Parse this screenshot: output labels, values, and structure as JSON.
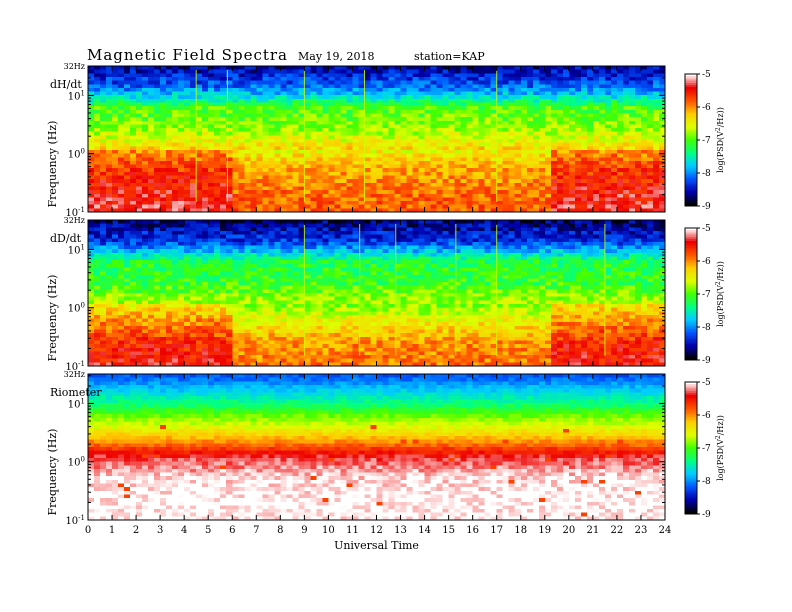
{
  "header": {
    "title": "Magnetic  Field  Spectra",
    "date": "May 19, 2018",
    "station": "station=KAP"
  },
  "chart_data": [
    {
      "type": "heatmap",
      "panel_label": "dH/dt",
      "ylabel": "Frequency  (Hz)",
      "colorbar_label": "log(PSD(V^2/Hz))",
      "y_scale": "log",
      "ylim": [
        0.1,
        32
      ],
      "y_tick_labels": [
        "32Hz",
        "10^1",
        "10^0",
        "10^-1"
      ],
      "colorbar_range": [
        -9,
        -5
      ],
      "colorbar_ticks": [
        "-5",
        "-6",
        "-7",
        "-8",
        "-9"
      ],
      "xlim": [
        0,
        24
      ],
      "colormap": [
        "#000000",
        "#0000aa",
        "#0055ff",
        "#00ccff",
        "#00ff88",
        "#44ff00",
        "#ddff00",
        "#ffcc00",
        "#ff5500",
        "#ee0000",
        "#ffffff"
      ],
      "ridge_row_values": [
        -8.6,
        -8.1,
        -7.0,
        -6.8,
        -6.3,
        -5.9,
        -5.7,
        -5.6
      ],
      "event_hours": [
        9.0,
        4.5,
        5.8,
        17.0,
        11.5
      ]
    },
    {
      "type": "heatmap",
      "panel_label": "dD/dt",
      "ylabel": "Frequency  (Hz)",
      "colorbar_label": "log(PSD(V^2/Hz))",
      "y_scale": "log",
      "ylim": [
        0.1,
        32
      ],
      "y_tick_labels": [
        "32Hz",
        "10^1",
        "10^0",
        "10^-1"
      ],
      "colorbar_range": [
        -9,
        -5
      ],
      "colorbar_ticks": [
        "-5",
        "-6",
        "-7",
        "-8",
        "-9"
      ],
      "xlim": [
        0,
        24
      ],
      "colormap": [
        "#000000",
        "#0000aa",
        "#0055ff",
        "#00ccff",
        "#00ff88",
        "#44ff00",
        "#ddff00",
        "#ffcc00",
        "#ff5500",
        "#ee0000",
        "#ffffff"
      ],
      "ridge_row_values": [
        -8.7,
        -8.3,
        -7.2,
        -7.1,
        -6.7,
        -6.2,
        -5.8,
        -5.7
      ],
      "event_hours": [
        9.0,
        11.3,
        12.8,
        15.3,
        17.0,
        21.5
      ]
    },
    {
      "type": "heatmap",
      "panel_label": "Riometer",
      "ylabel": "Frequency  (Hz)",
      "colorbar_label": "log(PSD(V^2/Hz))",
      "y_scale": "log",
      "ylim": [
        0.1,
        32
      ],
      "y_tick_labels": [
        "32Hz",
        "10^1",
        "10^0",
        "10^-1"
      ],
      "colorbar_range": [
        -9,
        -5
      ],
      "colorbar_ticks": [
        "-5",
        "-6",
        "-7",
        "-8",
        "-9"
      ],
      "xlim": [
        0,
        24
      ],
      "colormap": [
        "#000000",
        "#0000aa",
        "#0055ff",
        "#00ccff",
        "#00ff88",
        "#44ff00",
        "#ddff00",
        "#ffcc00",
        "#ff5500",
        "#ee0000",
        "#ffffff"
      ],
      "ridge_row_values": [
        -8.2,
        -7.6,
        -6.9,
        -6.2,
        -5.3,
        -5.05,
        -5.0,
        -5.0
      ],
      "event_hours": []
    }
  ],
  "x_axis": {
    "label": "Universal Time",
    "ticks": [
      "0",
      "1",
      "2",
      "3",
      "4",
      "5",
      "6",
      "7",
      "8",
      "9",
      "10",
      "11",
      "12",
      "13",
      "14",
      "15",
      "16",
      "17",
      "18",
      "19",
      "20",
      "21",
      "22",
      "23",
      "24"
    ]
  }
}
